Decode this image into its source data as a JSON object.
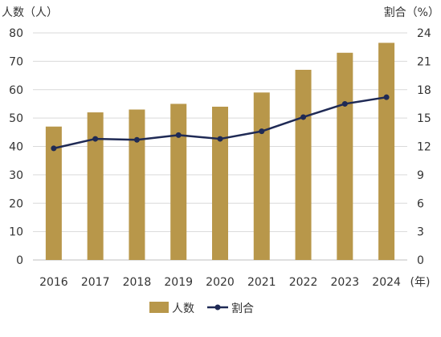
{
  "chart_data": {
    "type": "bar+line",
    "title": "",
    "categories": [
      "2016",
      "2017",
      "2018",
      "2019",
      "2020",
      "2021",
      "2022",
      "2023",
      "2024"
    ],
    "xlabel": "(年)",
    "left_axis": {
      "label": "人数（人）",
      "ylim": [
        0,
        80
      ],
      "ticks": [
        "0",
        "10",
        "20",
        "30",
        "40",
        "50",
        "60",
        "70",
        "80"
      ]
    },
    "right_axis": {
      "label": "割合（%）",
      "ylim": [
        0,
        24
      ],
      "ticks": [
        "0",
        "3",
        "6",
        "9",
        "12",
        "15",
        "18",
        "21",
        "24"
      ]
    },
    "series": [
      {
        "name": "人数",
        "type": "bar",
        "axis": "left",
        "color": "#b8974a",
        "values": [
          47,
          52,
          53,
          55,
          54,
          59,
          67,
          73,
          76.5
        ]
      },
      {
        "name": "割合",
        "type": "line",
        "axis": "right",
        "color": "#1f2a55",
        "values": [
          11.8,
          12.8,
          12.7,
          13.2,
          12.8,
          13.6,
          15.1,
          16.5,
          17.2
        ]
      }
    ],
    "grid": true,
    "legend_position": "bottom-center"
  }
}
